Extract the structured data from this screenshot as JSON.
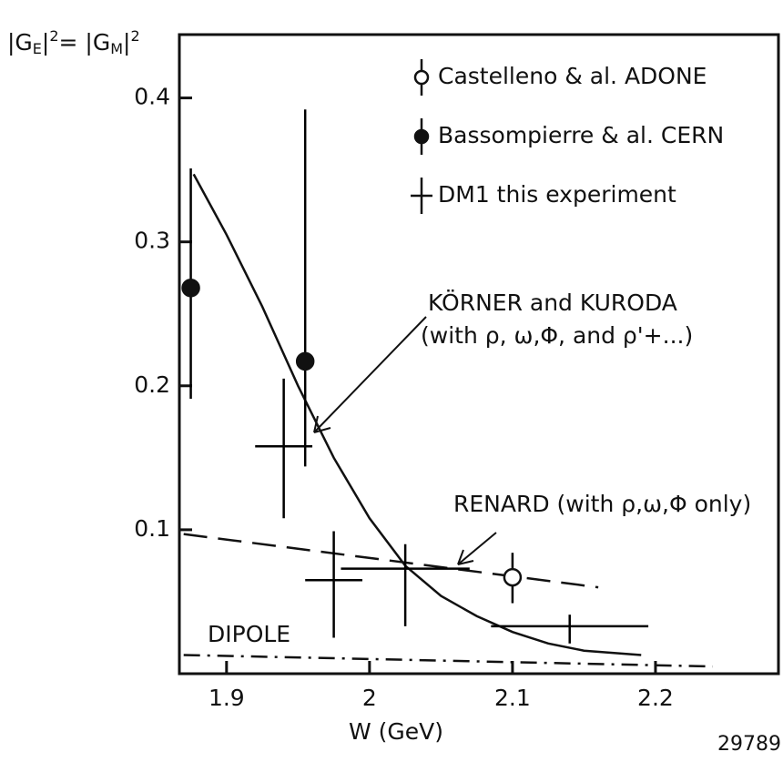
{
  "chart_data": {
    "type": "errorbar",
    "ylabel": [
      "|G",
      "E",
      "|",
      "2",
      "= |G",
      "M",
      "|",
      "2"
    ],
    "xlabel": "W (GeV)",
    "xlim": [
      1.867,
      2.286
    ],
    "ylim": [
      0,
      0.444
    ],
    "xticks": [
      1.9,
      2.0,
      2.1,
      2.2
    ],
    "yticks": [
      0.1,
      0.2,
      0.3,
      0.4
    ],
    "series": [
      {
        "name": "Castelleno & al. ADONE",
        "marker": "open",
        "color": "#000000",
        "x": [
          2.1
        ],
        "values": [
          0.067
        ],
        "yerr_plus": [
          0.017
        ],
        "yerr_minus": [
          0.018
        ]
      },
      {
        "name": "Bassompierre & al. CERN",
        "marker": "filled",
        "color": "#000000",
        "x": [
          1.875,
          1.955
        ],
        "values": [
          0.268,
          0.217
        ],
        "yerr_plus": [
          0.083,
          0.175
        ],
        "yerr_minus": [
          0.077,
          0.073
        ]
      },
      {
        "name": "DM1 this experiment",
        "marker": "cross",
        "color": "#000000",
        "x": [
          1.94,
          1.975,
          2.025,
          2.14
        ],
        "values": [
          0.158,
          0.065,
          0.073,
          0.033
        ],
        "xerr": [
          0.02,
          0.02,
          0.045,
          0.055
        ],
        "yerr_plus": [
          0.047,
          0.034,
          0.017,
          0.008
        ],
        "yerr_minus": [
          0.05,
          0.04,
          0.04,
          0.012
        ]
      }
    ],
    "curves": [
      {
        "name": "KÖRNER and KURODA",
        "style": "solid",
        "x": [
          1.877,
          1.9,
          1.925,
          1.95,
          1.975,
          2.0,
          2.025,
          2.05,
          2.075,
          2.1,
          2.125,
          2.15,
          2.19
        ],
        "values": [
          0.347,
          0.305,
          0.255,
          0.2,
          0.15,
          0.108,
          0.075,
          0.054,
          0.04,
          0.029,
          0.021,
          0.016,
          0.013
        ]
      },
      {
        "name": "RENARD",
        "style": "dashed",
        "x": [
          1.87,
          2.16
        ],
        "values": [
          0.097,
          0.06
        ]
      },
      {
        "name": "DIPOLE",
        "style": "dashdot",
        "x": [
          1.87,
          2.24
        ],
        "values": [
          0.013,
          0.005
        ]
      }
    ],
    "annotations": [
      "KÖRNER and KURODA",
      "(with ρ, ω,Φ, and ρ'+...)",
      "RENARD (with ρ,ω,Φ only)",
      "DIPOLE"
    ],
    "figure_number": "29789"
  }
}
